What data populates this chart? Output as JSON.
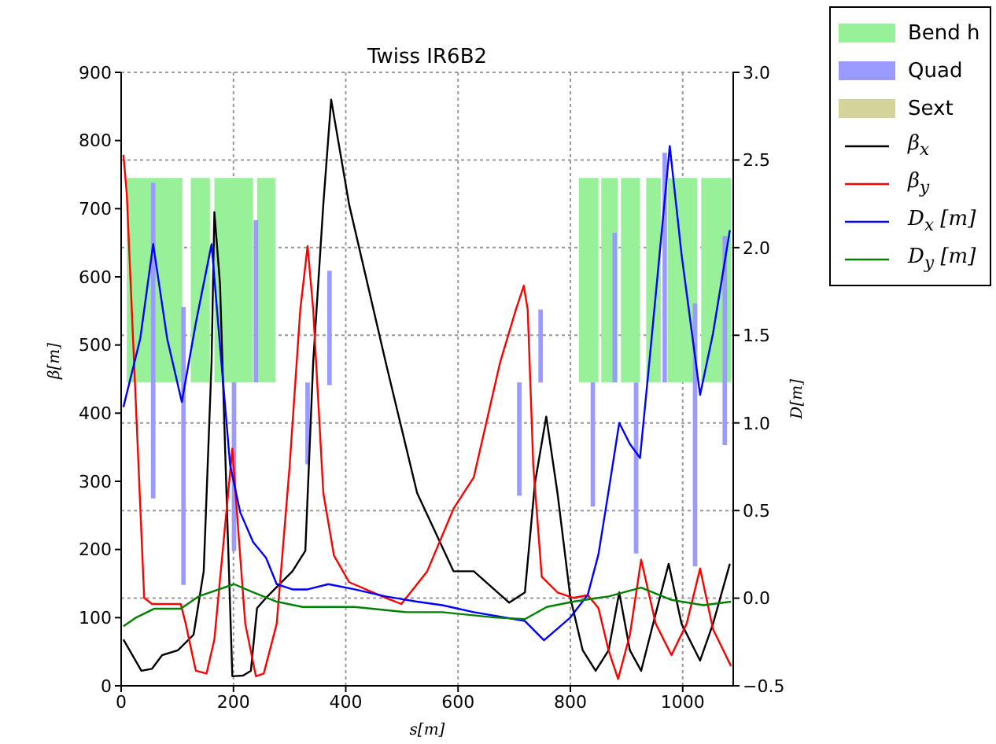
{
  "chart_data": {
    "type": "line",
    "title": "Twiss IR6B2",
    "xlabel": "s[m]",
    "ylabel": "β[m]",
    "y2label": "D[m]",
    "xlim": [
      0,
      1090
    ],
    "xticks": [
      0,
      200,
      400,
      600,
      800,
      1000
    ],
    "ylim": [
      0,
      900
    ],
    "yticks": [
      0,
      100,
      200,
      300,
      400,
      500,
      600,
      700,
      800,
      900
    ],
    "y2lim": [
      -0.5,
      3.0
    ],
    "y2ticks": [
      {
        "value": -0.5,
        "label": "−0.5"
      },
      {
        "value": 0,
        "label": "0.0"
      },
      0.5,
      {
        "value": 1,
        "label": "1.0"
      },
      1.5,
      {
        "value": 2,
        "label": "2.0"
      },
      2.5,
      {
        "value": 3,
        "label": "3.0"
      }
    ],
    "grid": true,
    "legend": "top right",
    "line_style": "solid",
    "series": [
      {
        "type": "histogram",
        "name": "Bend h",
        "color": "#98f098",
        "bins": [
          10,
          109,
          124,
          158,
          166,
          235,
          242,
          275,
          815,
          850,
          855,
          884,
          890,
          924,
          935,
          961,
          973,
          1026,
          1033,
          1086
        ],
        "values": [
          300,
          null,
          300,
          null,
          300,
          null,
          300,
          null,
          300,
          null,
          300,
          null,
          300,
          null,
          300,
          null,
          300,
          null,
          300
        ],
        "base": [
          445,
          null,
          445,
          null,
          445,
          null,
          445,
          null,
          445,
          null,
          445,
          null,
          445,
          null,
          445,
          null,
          445,
          null,
          445
        ]
      },
      {
        "type": "histogram",
        "name": "Quad",
        "color": "#9a9aff",
        "bins": [
          53,
          61,
          107,
          115,
          197,
          205,
          236,
          244,
          328,
          336,
          367,
          375,
          705,
          713,
          743,
          751,
          836,
          844,
          875,
          883,
          913,
          921,
          964,
          972,
          1018,
          1026,
          1071,
          1079
        ],
        "values": [
          463,
          null,
          408,
          null,
          247,
          null,
          238,
          null,
          120,
          null,
          168,
          null,
          166,
          null,
          107,
          null,
          182,
          null,
          220,
          null,
          251,
          null,
          337,
          null,
          386,
          null,
          307
        ],
        "base": [
          275,
          null,
          148,
          null,
          198,
          null,
          445,
          null,
          325,
          null,
          441,
          null,
          279,
          null,
          445,
          null,
          263,
          null,
          445,
          null,
          194,
          null,
          445,
          null,
          175,
          null,
          353
        ]
      },
      {
        "type": "histogram",
        "name": "Sext",
        "color": "#d4d49a"
      },
      {
        "name": "β$_{x}$",
        "color": "#000000",
        "x": [
          4,
          36,
          55,
          73,
          101,
          129,
          147,
          161,
          166,
          176,
          189,
          198,
          217,
          231,
          242,
          258,
          305,
          328,
          342,
          360,
          374,
          406,
          471,
          527,
          592,
          628,
          691,
          719,
          737,
          757,
          777,
          800,
          822,
          845,
          868,
          887,
          906,
          926,
          952,
          975,
          998,
          1031,
          1054,
          1084
        ],
        "values": [
          68,
          22,
          25,
          45,
          52,
          75,
          168,
          475,
          695,
          590,
          245,
          14,
          15,
          22,
          114,
          129,
          168,
          198,
          475,
          706,
          860,
          706,
          475,
          283,
          168,
          168,
          122,
          137,
          298,
          395,
          283,
          129,
          52,
          22,
          52,
          137,
          52,
          22,
          106,
          179,
          91,
          37,
          91,
          179
        ]
      },
      {
        "name": "β$_{y}$",
        "color": "#ff0000",
        "x": [
          4,
          10,
          27,
          41,
          55,
          106,
          115,
          133,
          152,
          166,
          198,
          207,
          221,
          240,
          254,
          277,
          300,
          319,
          332,
          342,
          360,
          379,
          406,
          471,
          499,
          545,
          592,
          628,
          675,
          703,
          717,
          724,
          734,
          749,
          777,
          805,
          831,
          850,
          868,
          885,
          906,
          926,
          952,
          980,
          1007,
          1031,
          1054,
          1086
        ],
        "values": [
          779,
          722,
          398,
          129,
          120,
          120,
          91,
          22,
          18,
          68,
          348,
          245,
          91,
          14,
          18,
          91,
          322,
          552,
          645,
          552,
          283,
          191,
          152,
          129,
          120,
          168,
          260,
          306,
          475,
          552,
          587,
          552,
          322,
          160,
          137,
          129,
          133,
          114,
          52,
          10,
          75,
          185,
          91,
          45,
          91,
          172,
          83,
          29
        ]
      },
      {
        "name": "D$_{x}$ [m]",
        "color": "#0000ff",
        "axis": "y2",
        "x": [
          4,
          34,
          57,
          82,
          108,
          133,
          161,
          175,
          194,
          212,
          235,
          258,
          277,
          305,
          332,
          369,
          416,
          471,
          527,
          572,
          628,
          719,
          753,
          800,
          831,
          850,
          868,
          887,
          906,
          924,
          941,
          957,
          977,
          998,
          1031,
          1054,
          1084
        ],
        "values": [
          1.09,
          1.48,
          2.02,
          1.48,
          1.12,
          1.57,
          2.02,
          1.48,
          0.76,
          0.49,
          0.32,
          0.23,
          0.08,
          0.05,
          0.05,
          0.08,
          0.05,
          0.01,
          -0.02,
          -0.04,
          -0.08,
          -0.13,
          -0.24,
          -0.11,
          0.02,
          0.25,
          0.61,
          1.0,
          0.88,
          0.8,
          1.36,
          1.9,
          2.58,
          1.96,
          1.16,
          1.51,
          2.1
        ]
      },
      {
        "name": "D$_{y}$ [m]",
        "color": "#008000",
        "axis": "y2",
        "x": [
          4,
          27,
          59,
          106,
          138,
          201,
          230,
          277,
          323,
          416,
          508,
          572,
          665,
          719,
          758,
          805,
          868,
          926,
          980,
          1037,
          1086
        ],
        "values": [
          -0.16,
          -0.11,
          -0.06,
          -0.06,
          0.01,
          0.08,
          0.04,
          -0.02,
          -0.05,
          -0.05,
          -0.08,
          -0.08,
          -0.11,
          -0.12,
          -0.05,
          -0.02,
          0.01,
          0.06,
          -0.01,
          -0.04,
          -0.02
        ]
      }
    ]
  }
}
